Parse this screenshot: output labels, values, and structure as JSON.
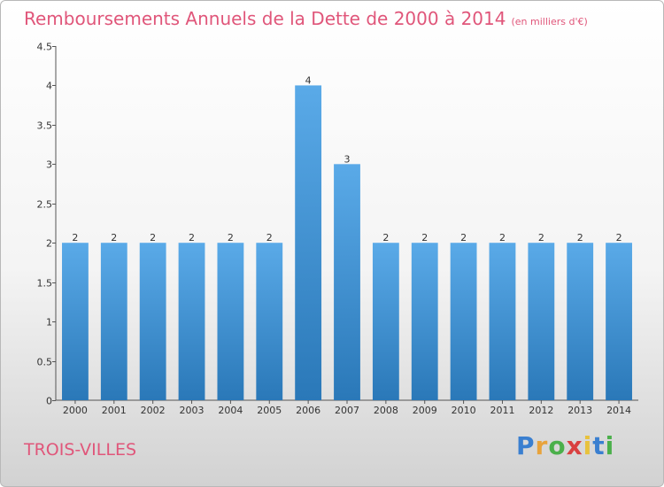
{
  "header": {
    "title": "Remboursements Annuels de la Dette de 2000 à 2014",
    "subtitle": "(en milliers d'€)"
  },
  "footer": {
    "commune": "TROIS-VILLES",
    "logo_letters": [
      "P",
      "r",
      "o",
      "x",
      "i",
      "t",
      "i"
    ],
    "logo_colors": [
      "#3a7fd0",
      "#e8a33c",
      "#4bb04b",
      "#d94040",
      "#e8c23c",
      "#3a7fd0",
      "#4bb04b"
    ]
  },
  "chart_data": {
    "type": "bar",
    "title": "Remboursements Annuels de la Dette de 2000 à 2014",
    "categories": [
      "2000",
      "2001",
      "2002",
      "2003",
      "2004",
      "2005",
      "2006",
      "2007",
      "2008",
      "2009",
      "2010",
      "2011",
      "2012",
      "2013",
      "2014"
    ],
    "values": [
      2,
      2,
      2,
      2,
      2,
      2,
      4,
      3,
      2,
      2,
      2,
      2,
      2,
      2,
      2
    ],
    "data_labels": [
      "2",
      "2",
      "2",
      "2",
      "2",
      "2",
      "4",
      "3",
      "2",
      "2",
      "2",
      "2",
      "2",
      "2",
      "2"
    ],
    "ylim": [
      0,
      4.5
    ],
    "yticks": [
      0,
      0.5,
      1,
      1.5,
      2,
      2.5,
      3,
      3.5,
      4,
      4.5
    ],
    "ytick_labels": [
      "0",
      "0.5",
      "1",
      "1.5",
      "2",
      "2.5",
      "3",
      "3.5",
      "4",
      "4.5"
    ],
    "grid": false,
    "legend": "none",
    "bar_color_top": "#5aaae8",
    "bar_color_bottom": "#2a78b8"
  }
}
